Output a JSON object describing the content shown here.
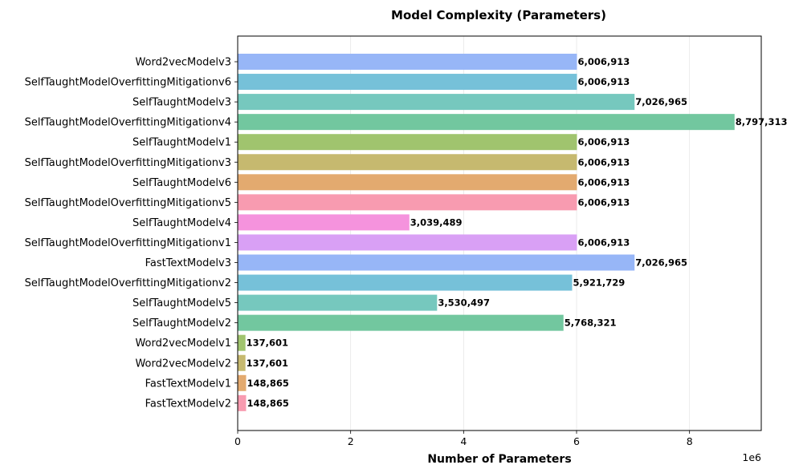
{
  "chart_data": {
    "type": "bar",
    "orientation": "horizontal",
    "title": "Model Complexity (Parameters)",
    "xlabel": "Number of Parameters",
    "ylabel": "",
    "x_offset_label": "1e6",
    "xlim": [
      0,
      9270000
    ],
    "xticks": [
      0,
      2000000,
      4000000,
      6000000,
      8000000
    ],
    "xtick_labels": [
      "0",
      "2",
      "4",
      "6",
      "8"
    ],
    "grid": "x",
    "categories": [
      "Word2vecModelv3",
      "SelfTaughtModelOverfittingMitigationv6",
      "SelfTaughtModelv3",
      "SelfTaughtModelOverfittingMitigationv4",
      "SelfTaughtModelv1",
      "SelfTaughtModelOverfittingMitigationv3",
      "SelfTaughtModelv6",
      "SelfTaughtModelOverfittingMitigationv5",
      "SelfTaughtModelv4",
      "SelfTaughtModelOverfittingMitigationv1",
      "FastTextModelv3",
      "SelfTaughtModelOverfittingMitigationv2",
      "SelfTaughtModelv5",
      "SelfTaughtModelv2",
      "Word2vecModelv1",
      "Word2vecModelv2",
      "FastTextModelv1",
      "FastTextModelv2"
    ],
    "values": [
      6006913,
      6006913,
      7026965,
      8797313,
      6006913,
      6006913,
      6006913,
      6006913,
      3039489,
      6006913,
      7026965,
      5921729,
      3530497,
      5768321,
      137601,
      137601,
      148865,
      148865
    ],
    "value_labels": [
      "6,006,913",
      "6,006,913",
      "7,026,965",
      "8,797,313",
      "6,006,913",
      "6,006,913",
      "6,006,913",
      "6,006,913",
      "3,039,489",
      "6,006,913",
      "7,026,965",
      "5,921,729",
      "3,530,497",
      "5,768,321",
      "137,601",
      "137,601",
      "148,865",
      "148,865"
    ],
    "colors": [
      "#97b6f7",
      "#76c1d9",
      "#76c8be",
      "#72c79f",
      "#a0c46e",
      "#c6b96f",
      "#e3aa6f",
      "#f89bb0",
      "#f593dd",
      "#d9a0f5",
      "#97b6f7",
      "#76c1d9",
      "#76c8be",
      "#72c79f",
      "#a0c46e",
      "#c6b96f",
      "#e3aa6f",
      "#f89bb0"
    ]
  }
}
